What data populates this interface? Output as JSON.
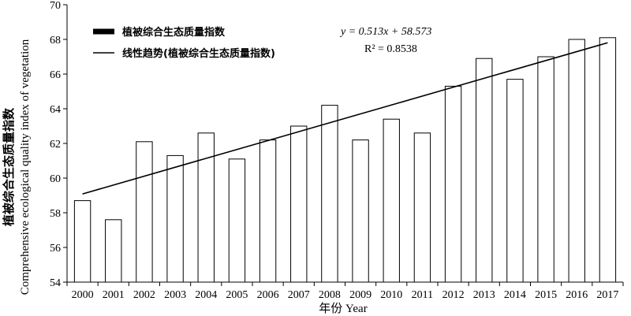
{
  "chart_data": {
    "type": "bar",
    "categories": [
      "2000",
      "2001",
      "2002",
      "2003",
      "2004",
      "2005",
      "2006",
      "2007",
      "2008",
      "2009",
      "2010",
      "2011",
      "2012",
      "2013",
      "2014",
      "2015",
      "2016",
      "2017"
    ],
    "series": [
      {
        "name": "植被综合生态质量指数",
        "values": [
          58.7,
          57.6,
          62.1,
          61.3,
          62.6,
          61.1,
          62.2,
          63.0,
          64.2,
          62.2,
          63.4,
          62.6,
          65.3,
          66.9,
          65.7,
          67.0,
          68.0,
          68.1
        ]
      }
    ],
    "trendline": {
      "name": "线性趋势(植被综合生态质量指数)",
      "slope": 0.513,
      "intercept": 58.573,
      "equation": "y = 0.513x + 58.573",
      "r2_label": "R² = 0.8538"
    },
    "xlabel": "年份 Year",
    "ylabel_cn": "植被综合生态质量指数",
    "ylabel_en": "Comprehensive ecological quality index of vegetation",
    "ylim": [
      54,
      70
    ],
    "yticks": [
      54,
      56,
      58,
      60,
      62,
      64,
      66,
      68,
      70
    ],
    "grid": false,
    "legend_position": "top-left",
    "colors": {
      "bar_fill": "#ffffff",
      "bar_stroke": "#000000",
      "trend": "#000000"
    }
  }
}
